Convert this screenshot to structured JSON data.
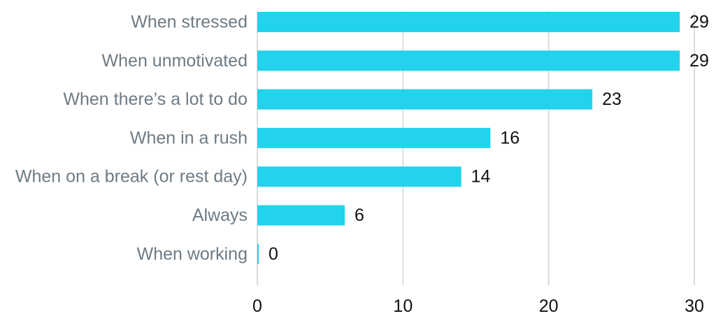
{
  "chart_data": {
    "type": "bar",
    "orientation": "horizontal",
    "title": "",
    "xlabel": "",
    "ylabel": "",
    "categories": [
      "When stressed",
      "When unmotivated",
      "When there’s a lot to do",
      "When in a rush",
      "When on a break (or rest day)",
      "Always",
      "When working"
    ],
    "values": [
      29,
      29,
      23,
      16,
      14,
      6,
      0
    ],
    "value_labels": [
      "29",
      "29",
      "23",
      "16",
      "14",
      "6",
      "0"
    ],
    "xlim": [
      0,
      30
    ],
    "xticks": [
      0,
      10,
      20,
      30
    ],
    "xtick_labels": [
      "0",
      "10",
      "20",
      "30"
    ],
    "grid": "vertical",
    "legend": "none",
    "colors": {
      "bar": "#22d3eb",
      "grid": "#dcdcdc",
      "category_text": "#6e7b85",
      "value_text": "#111111"
    }
  }
}
